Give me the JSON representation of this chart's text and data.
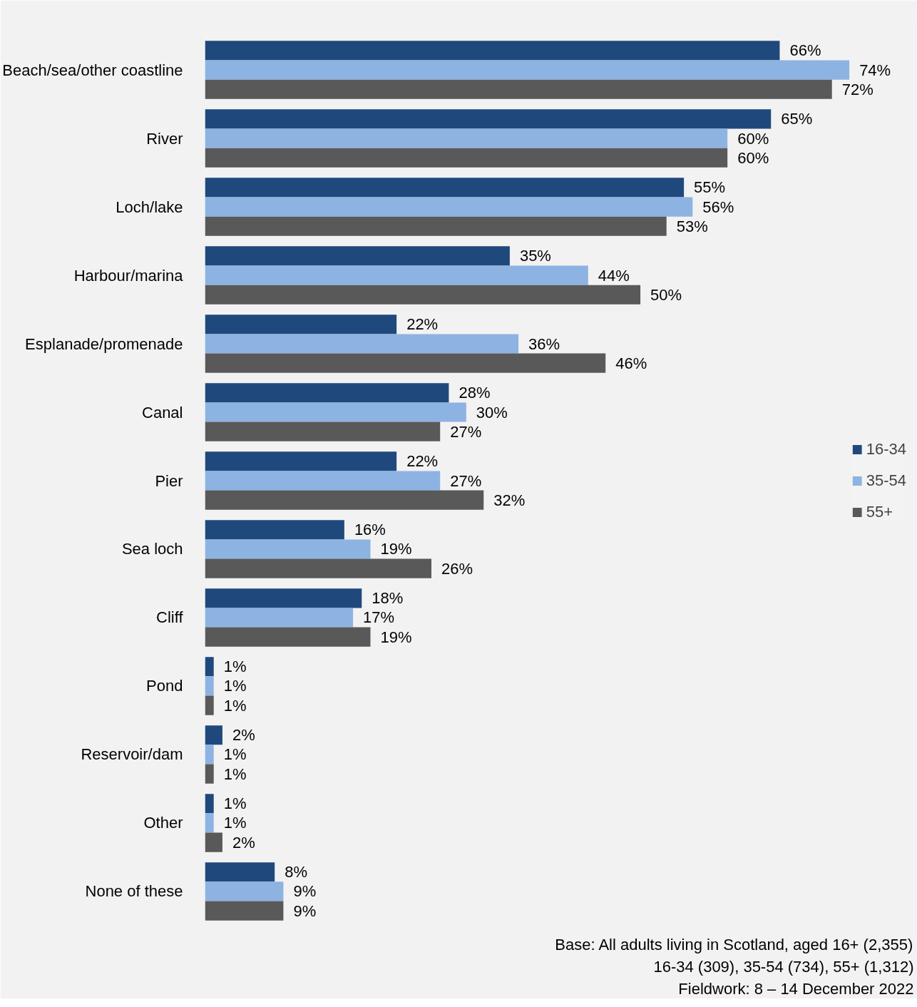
{
  "chart_data": {
    "type": "bar",
    "orientation": "horizontal",
    "categories": [
      "Beach/sea/other coastline",
      "River",
      "Loch/lake",
      "Harbour/marina",
      "Esplanade/promenade",
      "Canal",
      "Pier",
      "Sea loch",
      "Cliff",
      "Pond",
      "Reservoir/dam",
      "Other",
      "None of these"
    ],
    "series": [
      {
        "name": "16-34",
        "color": "#1f497d",
        "values": [
          66,
          65,
          55,
          35,
          22,
          28,
          22,
          16,
          18,
          1,
          2,
          1,
          8
        ],
        "value_labels": [
          "66%",
          "65%",
          "55%",
          "35%",
          "22%",
          "28%",
          "22%",
          "16%",
          "18%",
          "1%",
          "2%",
          "1%",
          "8%"
        ]
      },
      {
        "name": "35-54",
        "color": "#8db3e2",
        "values": [
          74,
          60,
          56,
          44,
          36,
          30,
          27,
          19,
          17,
          1,
          1,
          1,
          9
        ],
        "value_labels": [
          "74%",
          "60%",
          "56%",
          "44%",
          "36%",
          "30%",
          "27%",
          "19%",
          "17%",
          "1%",
          "1%",
          "1%",
          "9%"
        ]
      },
      {
        "name": "55+",
        "color": "#595959",
        "values": [
          72,
          60,
          53,
          50,
          46,
          27,
          32,
          26,
          19,
          1,
          1,
          2,
          9
        ],
        "value_labels": [
          "72%",
          "60%",
          "53%",
          "50%",
          "46%",
          "27%",
          "32%",
          "26%",
          "19%",
          "1%",
          "1%",
          "2%",
          "9%"
        ]
      }
    ],
    "legend": "right",
    "grid": false,
    "annotations": [
      "Base: All adults living in Scotland, aged 16+ (2,355)",
      "16-34 (309), 35-54 (734), 55+ (1,312)",
      "Fieldwork: 8 – 14 December 2022"
    ]
  }
}
